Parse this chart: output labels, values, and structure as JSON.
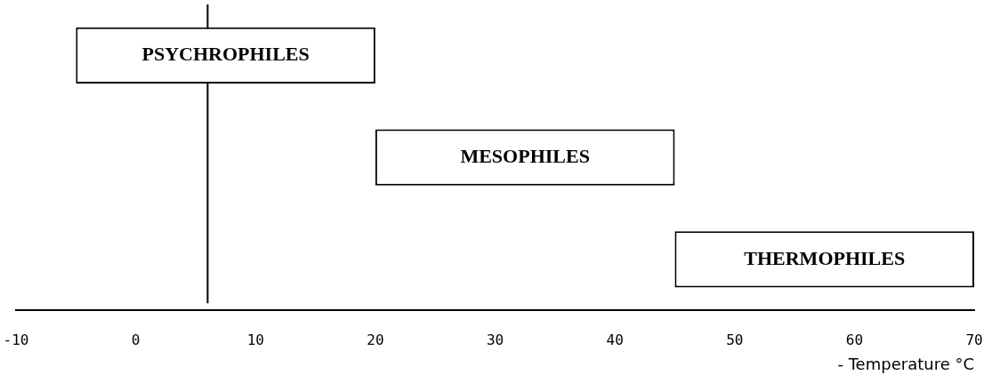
{
  "chart_data": {
    "type": "bar",
    "orientation": "horizontal",
    "xlabel": "- Temperature °C",
    "categories": [
      "PSYCHROPHILES",
      "MESOPHILES",
      "THERMOPHILES"
    ],
    "base": [
      -5,
      20,
      45
    ],
    "values": [
      25,
      25,
      25
    ],
    "color": "#ffffff",
    "xlim": [
      -10,
      70
    ],
    "xticks": [
      -10,
      0,
      10,
      20,
      30,
      40,
      50,
      60,
      70
    ],
    "ref_lines": [
      {
        "axis": "x",
        "value": 6
      }
    ],
    "tick_labels": "x",
    "grid": false,
    "legend": false
  }
}
